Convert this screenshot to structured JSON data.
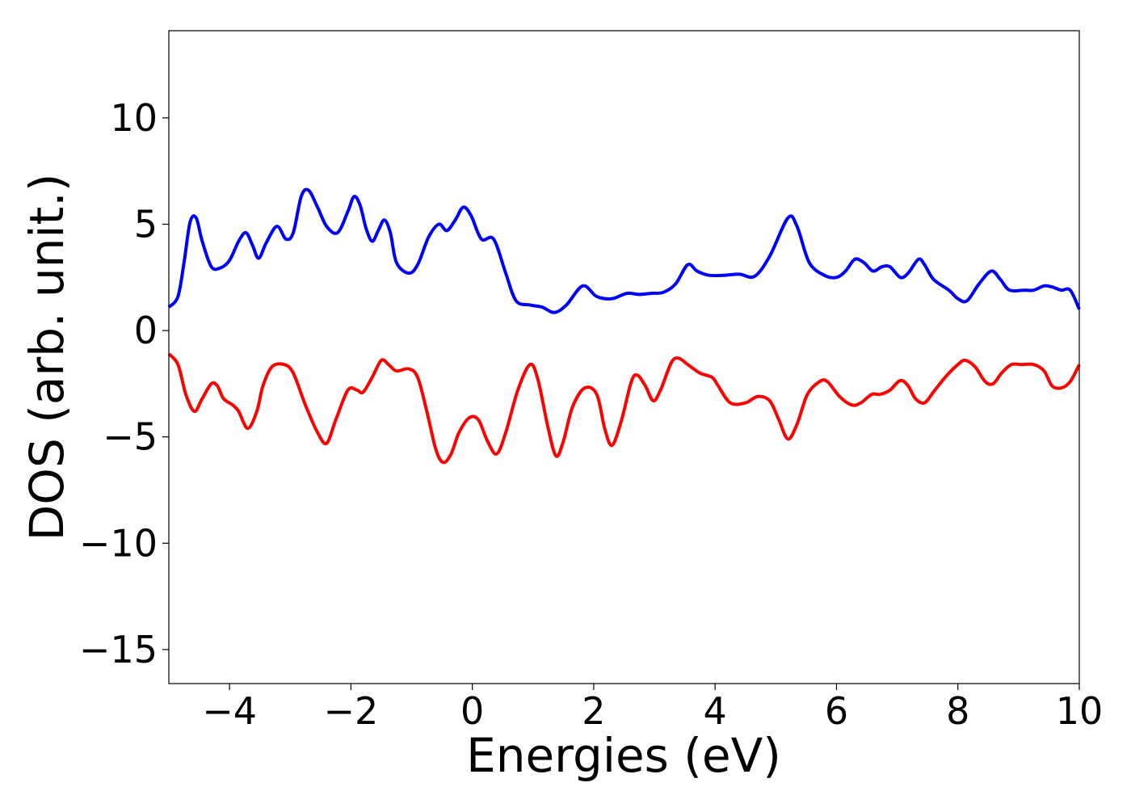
{
  "chart_data": {
    "type": "line",
    "title": "",
    "xlabel": "Energies (eV)",
    "ylabel": "DOS (arb. unit.)",
    "xlim": [
      -5,
      10
    ],
    "ylim": [
      -16.6,
      14.1
    ],
    "grid": false,
    "legend": "none",
    "x_ticks": [
      -4,
      -2,
      0,
      2,
      4,
      6,
      8,
      10
    ],
    "x_tick_labels": [
      "−4",
      "−2",
      "0",
      "2",
      "4",
      "6",
      "8",
      "10"
    ],
    "y_ticks": [
      10,
      5,
      0,
      -5,
      -10,
      -15
    ],
    "y_tick_labels": [
      "10",
      "5",
      "0",
      "−5",
      "−10",
      "−15"
    ],
    "series": [
      {
        "color": "#0000ff",
        "points": [
          [
            -5.0,
            1.1
          ],
          [
            -4.85,
            1.6
          ],
          [
            -4.75,
            3.2
          ],
          [
            -4.65,
            5.1
          ],
          [
            -4.55,
            5.3
          ],
          [
            -4.45,
            4.2
          ],
          [
            -4.3,
            3.0
          ],
          [
            -4.15,
            2.95
          ],
          [
            -4.0,
            3.3
          ],
          [
            -3.85,
            4.2
          ],
          [
            -3.73,
            4.6
          ],
          [
            -3.62,
            4.0
          ],
          [
            -3.52,
            3.4
          ],
          [
            -3.4,
            4.1
          ],
          [
            -3.22,
            4.9
          ],
          [
            -3.07,
            4.3
          ],
          [
            -2.95,
            4.6
          ],
          [
            -2.82,
            6.3
          ],
          [
            -2.7,
            6.6
          ],
          [
            -2.55,
            5.8
          ],
          [
            -2.4,
            4.9
          ],
          [
            -2.22,
            4.6
          ],
          [
            -2.05,
            5.6
          ],
          [
            -1.95,
            6.3
          ],
          [
            -1.85,
            5.9
          ],
          [
            -1.75,
            4.8
          ],
          [
            -1.65,
            4.2
          ],
          [
            -1.55,
            4.7
          ],
          [
            -1.45,
            5.2
          ],
          [
            -1.35,
            4.6
          ],
          [
            -1.25,
            3.2
          ],
          [
            -1.05,
            2.7
          ],
          [
            -0.9,
            3.1
          ],
          [
            -0.72,
            4.4
          ],
          [
            -0.55,
            5.0
          ],
          [
            -0.42,
            4.7
          ],
          [
            -0.28,
            5.2
          ],
          [
            -0.15,
            5.8
          ],
          [
            -0.02,
            5.4
          ],
          [
            0.15,
            4.3
          ],
          [
            0.35,
            4.3
          ],
          [
            0.55,
            2.7
          ],
          [
            0.72,
            1.4
          ],
          [
            0.95,
            1.2
          ],
          [
            1.15,
            1.1
          ],
          [
            1.35,
            0.85
          ],
          [
            1.55,
            1.2
          ],
          [
            1.82,
            2.1
          ],
          [
            2.05,
            1.6
          ],
          [
            2.3,
            1.5
          ],
          [
            2.55,
            1.75
          ],
          [
            2.75,
            1.7
          ],
          [
            2.95,
            1.75
          ],
          [
            3.15,
            1.8
          ],
          [
            3.35,
            2.2
          ],
          [
            3.55,
            3.1
          ],
          [
            3.7,
            2.8
          ],
          [
            3.9,
            2.6
          ],
          [
            4.15,
            2.6
          ],
          [
            4.4,
            2.65
          ],
          [
            4.65,
            2.55
          ],
          [
            4.9,
            3.5
          ],
          [
            5.2,
            5.3
          ],
          [
            5.35,
            4.9
          ],
          [
            5.55,
            3.2
          ],
          [
            5.8,
            2.6
          ],
          [
            6.0,
            2.5
          ],
          [
            6.15,
            2.8
          ],
          [
            6.3,
            3.35
          ],
          [
            6.45,
            3.2
          ],
          [
            6.6,
            2.8
          ],
          [
            6.75,
            3.0
          ],
          [
            6.88,
            3.0
          ],
          [
            7.05,
            2.5
          ],
          [
            7.18,
            2.7
          ],
          [
            7.35,
            3.35
          ],
          [
            7.45,
            3.1
          ],
          [
            7.6,
            2.4
          ],
          [
            7.85,
            1.9
          ],
          [
            8.0,
            1.5
          ],
          [
            8.15,
            1.4
          ],
          [
            8.35,
            2.2
          ],
          [
            8.55,
            2.8
          ],
          [
            8.7,
            2.4
          ],
          [
            8.85,
            1.9
          ],
          [
            9.1,
            1.9
          ],
          [
            9.25,
            1.9
          ],
          [
            9.42,
            2.1
          ],
          [
            9.55,
            2.05
          ],
          [
            9.7,
            1.9
          ],
          [
            9.85,
            1.9
          ],
          [
            10.0,
            1.0
          ]
        ]
      },
      {
        "color": "#ff0000",
        "points": [
          [
            -5.0,
            -1.1
          ],
          [
            -4.85,
            -1.6
          ],
          [
            -4.72,
            -3.0
          ],
          [
            -4.58,
            -3.8
          ],
          [
            -4.45,
            -3.2
          ],
          [
            -4.3,
            -2.5
          ],
          [
            -4.2,
            -2.6
          ],
          [
            -4.1,
            -3.2
          ],
          [
            -3.95,
            -3.5
          ],
          [
            -3.85,
            -3.8
          ],
          [
            -3.7,
            -4.6
          ],
          [
            -3.55,
            -3.8
          ],
          [
            -3.45,
            -2.6
          ],
          [
            -3.3,
            -1.7
          ],
          [
            -3.1,
            -1.6
          ],
          [
            -2.95,
            -2.0
          ],
          [
            -2.75,
            -3.5
          ],
          [
            -2.55,
            -4.8
          ],
          [
            -2.4,
            -5.3
          ],
          [
            -2.25,
            -4.2
          ],
          [
            -2.05,
            -2.8
          ],
          [
            -1.9,
            -2.8
          ],
          [
            -1.8,
            -2.9
          ],
          [
            -1.65,
            -2.2
          ],
          [
            -1.5,
            -1.4
          ],
          [
            -1.38,
            -1.6
          ],
          [
            -1.25,
            -1.9
          ],
          [
            -1.05,
            -1.8
          ],
          [
            -0.9,
            -2.2
          ],
          [
            -0.75,
            -3.8
          ],
          [
            -0.6,
            -5.6
          ],
          [
            -0.48,
            -6.2
          ],
          [
            -0.35,
            -5.8
          ],
          [
            -0.22,
            -4.8
          ],
          [
            -0.05,
            -4.1
          ],
          [
            0.1,
            -4.2
          ],
          [
            0.25,
            -5.2
          ],
          [
            0.4,
            -5.8
          ],
          [
            0.55,
            -4.8
          ],
          [
            0.75,
            -2.8
          ],
          [
            0.95,
            -1.6
          ],
          [
            1.08,
            -2.3
          ],
          [
            1.25,
            -4.6
          ],
          [
            1.38,
            -5.9
          ],
          [
            1.5,
            -5.2
          ],
          [
            1.65,
            -3.6
          ],
          [
            1.85,
            -2.7
          ],
          [
            2.05,
            -3.0
          ],
          [
            2.18,
            -4.6
          ],
          [
            2.3,
            -5.4
          ],
          [
            2.45,
            -4.3
          ],
          [
            2.62,
            -2.4
          ],
          [
            2.72,
            -2.1
          ],
          [
            2.85,
            -2.6
          ],
          [
            2.98,
            -3.3
          ],
          [
            3.1,
            -2.8
          ],
          [
            3.28,
            -1.5
          ],
          [
            3.4,
            -1.3
          ],
          [
            3.55,
            -1.6
          ],
          [
            3.75,
            -2.0
          ],
          [
            3.95,
            -2.2
          ],
          [
            4.05,
            -2.6
          ],
          [
            4.25,
            -3.4
          ],
          [
            4.5,
            -3.4
          ],
          [
            4.7,
            -3.1
          ],
          [
            4.9,
            -3.3
          ],
          [
            5.05,
            -4.2
          ],
          [
            5.2,
            -5.1
          ],
          [
            5.35,
            -4.4
          ],
          [
            5.52,
            -3.0
          ],
          [
            5.72,
            -2.4
          ],
          [
            5.85,
            -2.4
          ],
          [
            6.05,
            -3.1
          ],
          [
            6.25,
            -3.5
          ],
          [
            6.4,
            -3.4
          ],
          [
            6.58,
            -3.0
          ],
          [
            6.72,
            -3.0
          ],
          [
            6.88,
            -2.8
          ],
          [
            7.05,
            -2.35
          ],
          [
            7.18,
            -2.6
          ],
          [
            7.3,
            -3.2
          ],
          [
            7.45,
            -3.4
          ],
          [
            7.62,
            -2.8
          ],
          [
            7.82,
            -2.1
          ],
          [
            8.0,
            -1.6
          ],
          [
            8.12,
            -1.4
          ],
          [
            8.28,
            -1.7
          ],
          [
            8.45,
            -2.4
          ],
          [
            8.58,
            -2.5
          ],
          [
            8.72,
            -2.0
          ],
          [
            8.88,
            -1.6
          ],
          [
            9.05,
            -1.6
          ],
          [
            9.25,
            -1.6
          ],
          [
            9.42,
            -1.9
          ],
          [
            9.55,
            -2.6
          ],
          [
            9.7,
            -2.7
          ],
          [
            9.85,
            -2.4
          ],
          [
            10.0,
            -1.6
          ]
        ]
      }
    ]
  }
}
